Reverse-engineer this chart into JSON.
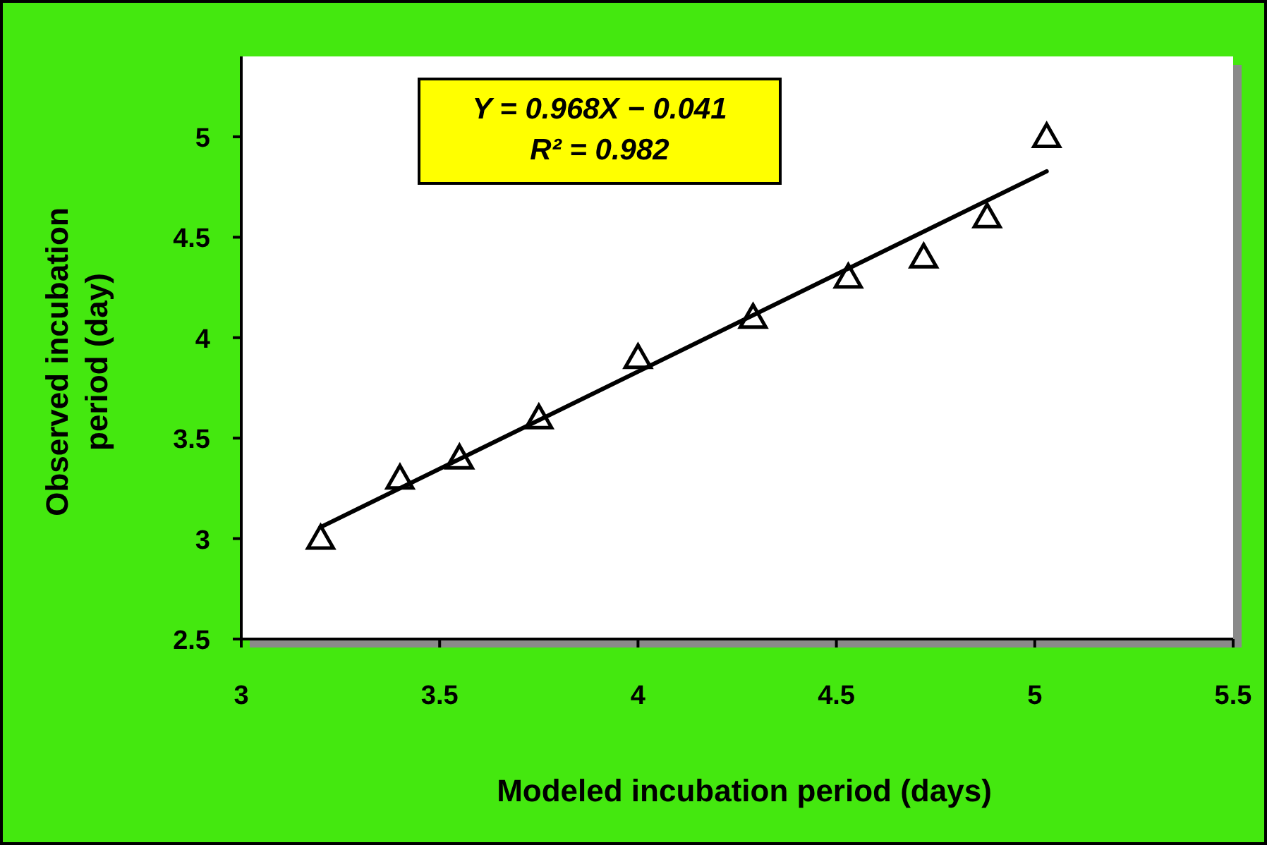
{
  "chart_data": {
    "type": "scatter",
    "xlabel": "Modeled incubation period (days)",
    "ylabel": "Observed incubation period (day)",
    "xlim": [
      3,
      5.5
    ],
    "ylim": [
      2.5,
      5.4
    ],
    "xticks": [
      3,
      3.5,
      4,
      4.5,
      5,
      5.5
    ],
    "yticks": [
      2.5,
      3,
      3.5,
      4,
      4.5,
      5
    ],
    "grid": false,
    "annotations": [
      "Y = 0.968X − 0.041",
      "R² = 0.982"
    ],
    "series": [
      {
        "marker": "triangle",
        "color": "#000000",
        "x": [
          3.2,
          3.4,
          3.55,
          3.75,
          4.0,
          4.29,
          4.53,
          4.72,
          4.88,
          5.03
        ],
        "values": [
          3.0,
          3.3,
          3.4,
          3.6,
          3.9,
          4.1,
          4.3,
          4.4,
          4.6,
          5.0
        ]
      },
      {
        "type": "line",
        "line_style": "solid",
        "color": "#000000",
        "x": [
          3.2,
          5.03
        ],
        "values": [
          3.057,
          4.828
        ]
      }
    ]
  }
}
